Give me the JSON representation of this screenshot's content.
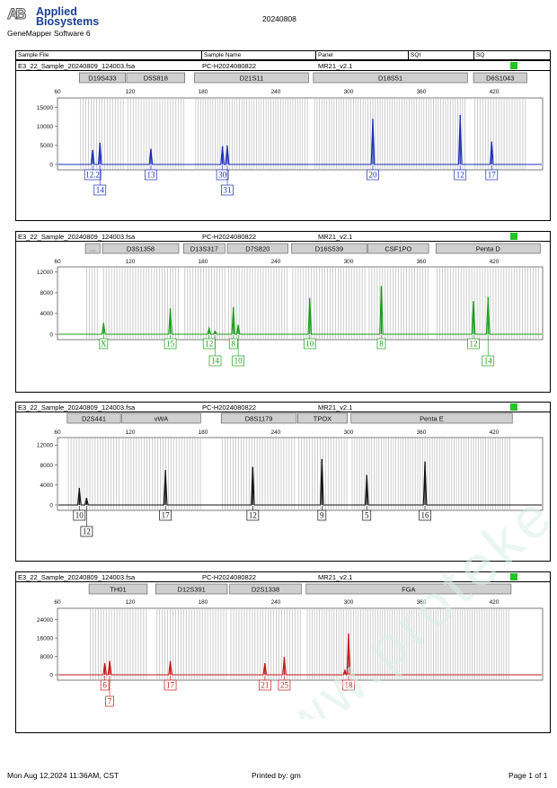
{
  "header": {
    "logo_line1": "Applied",
    "logo_line2": "Biosystems",
    "software": "GeneMapper Software 6",
    "date": "20240808"
  },
  "table_header": {
    "sample_file": "Sample File",
    "sample_name": "Sample Name",
    "panel": "Panel",
    "sqi": "SQI",
    "sq": "SQ"
  },
  "panels": [
    {
      "file": "E3_22_Sample_20240809_124003.fsa",
      "name": "PC-H2024080822",
      "panel": "MR21_v2.1",
      "color": "#1a2fb5",
      "ymax": 17500,
      "yticks": [
        0,
        5000,
        10000,
        15000
      ],
      "loci": [
        {
          "name": "D19S433",
          "start": 78,
          "end": 116
        },
        {
          "name": "D5S818",
          "start": 117,
          "end": 165
        },
        {
          "name": "D21S11",
          "start": 173,
          "end": 267
        },
        {
          "name": "D18S51",
          "start": 271,
          "end": 398
        },
        {
          "name": "D6S1043",
          "start": 403,
          "end": 447
        }
      ],
      "peaks": [
        {
          "x": 89,
          "h": 3800
        },
        {
          "x": 95,
          "h": 5700
        },
        {
          "x": 137,
          "h": 4100
        },
        {
          "x": 196,
          "h": 4800
        },
        {
          "x": 200,
          "h": 5000
        },
        {
          "x": 320,
          "h": 12000
        },
        {
          "x": 392,
          "h": 13000
        },
        {
          "x": 418,
          "h": 6000
        }
      ],
      "labels": [
        {
          "text": "12.2",
          "x": 89,
          "row": 1
        },
        {
          "text": "14",
          "x": 95,
          "row": 2
        },
        {
          "text": "13",
          "x": 137,
          "row": 1
        },
        {
          "text": "30",
          "x": 196,
          "row": 1
        },
        {
          "text": "31",
          "x": 200,
          "row": 2
        },
        {
          "text": "20",
          "x": 320,
          "row": 1
        },
        {
          "text": "12",
          "x": 392,
          "row": 1
        },
        {
          "text": "17",
          "x": 418,
          "row": 1
        }
      ]
    },
    {
      "file": "E3_22_Sample_20240809_124003.fsa",
      "name": "PC-H2024080822",
      "panel": "MR21_v2.1",
      "color": "#1b9e1b",
      "ymax": 13000,
      "yticks": [
        0,
        4000,
        8000,
        12000
      ],
      "loci": [
        {
          "name": "...",
          "start": 83,
          "end": 95
        },
        {
          "name": "D3S1358",
          "start": 97,
          "end": 160
        },
        {
          "name": "D13S317",
          "start": 164,
          "end": 198
        },
        {
          "name": "D7S820",
          "start": 200,
          "end": 250
        },
        {
          "name": "D16S539",
          "start": 253,
          "end": 315
        },
        {
          "name": "CSF1PO",
          "start": 316,
          "end": 366
        },
        {
          "name": "Penta D",
          "start": 372,
          "end": 458
        }
      ],
      "peaks": [
        {
          "x": 98,
          "h": 2200
        },
        {
          "x": 153,
          "h": 5000
        },
        {
          "x": 185,
          "h": 1200
        },
        {
          "x": 190,
          "h": 600
        },
        {
          "x": 205,
          "h": 5200
        },
        {
          "x": 209,
          "h": 1800
        },
        {
          "x": 268,
          "h": 7000
        },
        {
          "x": 327,
          "h": 9300
        },
        {
          "x": 403,
          "h": 6400
        },
        {
          "x": 415,
          "h": 7200
        }
      ],
      "labels": [
        {
          "text": "X",
          "x": 98,
          "row": 1
        },
        {
          "text": "15",
          "x": 153,
          "row": 1
        },
        {
          "text": "12",
          "x": 185,
          "row": 1
        },
        {
          "text": "14",
          "x": 190,
          "row": 2
        },
        {
          "text": "8",
          "x": 205,
          "row": 1
        },
        {
          "text": "10",
          "x": 209,
          "row": 2
        },
        {
          "text": "10",
          "x": 268,
          "row": 1
        },
        {
          "text": "8",
          "x": 327,
          "row": 1
        },
        {
          "text": "12",
          "x": 403,
          "row": 1
        },
        {
          "text": "14",
          "x": 415,
          "row": 2
        }
      ]
    },
    {
      "file": "E3_22_Sample_20240809_124003.fsa",
      "name": "PC-H2024080822",
      "panel": "MR21_v2.1",
      "color": "#111111",
      "ymax": 13500,
      "yticks": [
        0,
        4000,
        8000,
        12000
      ],
      "loci": [
        {
          "name": "D2S441",
          "start": 68,
          "end": 112
        },
        {
          "name": "vWA",
          "start": 113,
          "end": 178
        },
        {
          "name": "D8S1179",
          "start": 195,
          "end": 257
        },
        {
          "name": "TPOX",
          "start": 258,
          "end": 299
        },
        {
          "name": "Penta E",
          "start": 302,
          "end": 435
        }
      ],
      "peaks": [
        {
          "x": 78,
          "h": 3400
        },
        {
          "x": 84,
          "h": 1400
        },
        {
          "x": 149,
          "h": 7000
        },
        {
          "x": 221,
          "h": 7600
        },
        {
          "x": 278,
          "h": 9200
        },
        {
          "x": 315,
          "h": 6000
        },
        {
          "x": 363,
          "h": 8700
        }
      ],
      "labels": [
        {
          "text": "10",
          "x": 78,
          "row": 1
        },
        {
          "text": "12",
          "x": 84,
          "row": 2
        },
        {
          "text": "17",
          "x": 149,
          "row": 1
        },
        {
          "text": "12",
          "x": 221,
          "row": 1
        },
        {
          "text": "9",
          "x": 278,
          "row": 1
        },
        {
          "text": "5",
          "x": 315,
          "row": 1
        },
        {
          "text": "16",
          "x": 363,
          "row": 1
        }
      ]
    },
    {
      "file": "E3_22_Sample_20240809_124003.fsa",
      "name": "PC-H2024080822",
      "panel": "MR21_v2.1",
      "color": "#c41a1a",
      "ymax": 29000,
      "yticks": [
        0,
        8000,
        16000,
        24000
      ],
      "loci": [
        {
          "name": "TH01",
          "start": 86,
          "end": 134
        },
        {
          "name": "D12S391",
          "start": 141,
          "end": 200
        },
        {
          "name": "D2S1338",
          "start": 202,
          "end": 261
        },
        {
          "name": "FGA",
          "start": 265,
          "end": 434
        }
      ],
      "peaks": [
        {
          "x": 99,
          "h": 5000
        },
        {
          "x": 103,
          "h": 6000
        },
        {
          "x": 153,
          "h": 6000
        },
        {
          "x": 231,
          "h": 5000
        },
        {
          "x": 247,
          "h": 7800
        },
        {
          "x": 297,
          "h": 2000
        },
        {
          "x": 300,
          "h": 18000
        }
      ],
      "labels": [
        {
          "text": "6",
          "x": 99,
          "row": 1
        },
        {
          "text": "7",
          "x": 103,
          "row": 2
        },
        {
          "text": "17",
          "x": 153,
          "row": 1
        },
        {
          "text": "21",
          "x": 231,
          "row": 1
        },
        {
          "text": "25",
          "x": 247,
          "row": 1
        },
        {
          "text": "18",
          "x": 300,
          "row": 1
        }
      ]
    }
  ],
  "xticks": [
    60,
    120,
    180,
    240,
    300,
    360,
    420
  ],
  "footer": {
    "date": "Mon Aug 12,2024 11:36AM, CST",
    "printed": "Printed by: gm",
    "page": "Page 1 of 1"
  }
}
